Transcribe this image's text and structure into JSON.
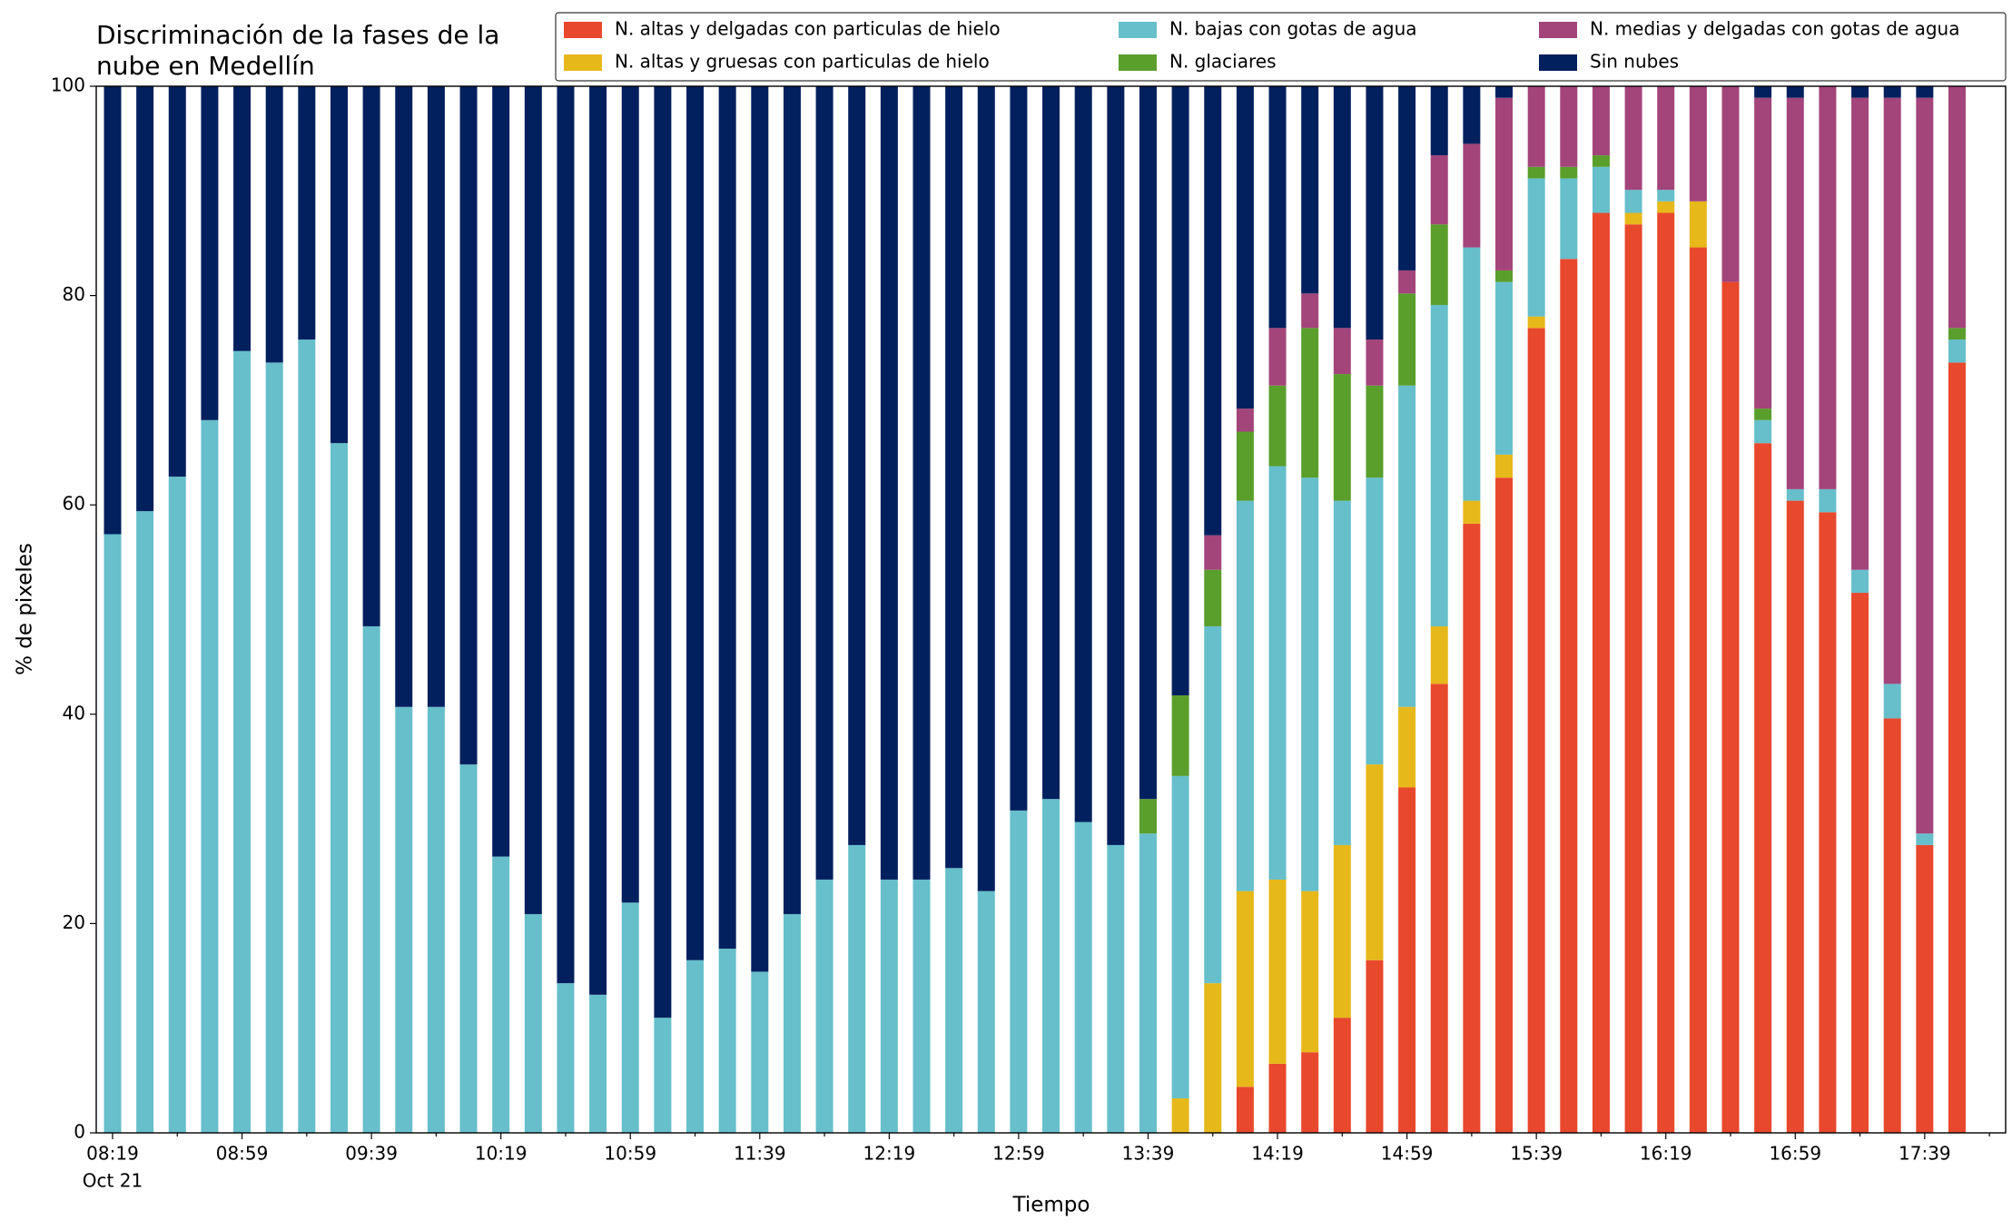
{
  "chart_data": {
    "type": "stacked_bar",
    "title": "Discriminación de la fases de la\nnube en Medellín",
    "x_label": "Tiempo",
    "y_label": "% de pixeles",
    "x_date": "Oct 21",
    "categories": [
      "08:19",
      null,
      null,
      null,
      "08:59",
      null,
      null,
      null,
      "09:39",
      null,
      null,
      null,
      "10:19",
      null,
      null,
      null,
      "10:59",
      null,
      null,
      null,
      "11:39",
      null,
      null,
      null,
      "12:19",
      null,
      null,
      null,
      "12:59",
      null,
      null,
      null,
      "13:39",
      null,
      null,
      null,
      "14:19",
      null,
      null,
      null,
      "14:59",
      null,
      null,
      null,
      "15:39",
      null,
      null,
      null,
      "16:19",
      null,
      null,
      null,
      "16:59",
      null,
      null,
      null,
      "17:39",
      null
    ],
    "ylim": [
      0,
      100
    ],
    "yticks": [
      0,
      20,
      40,
      60,
      80,
      100
    ],
    "legend": "top",
    "series": [
      {
        "name": "N. altas y delgadas con particulas de hielo",
        "color": "#e8482c",
        "values": [
          0,
          0,
          0,
          0,
          0,
          0,
          0,
          0,
          0,
          0,
          0,
          0,
          0,
          0,
          0,
          0,
          0,
          0,
          0,
          0,
          0,
          0,
          0,
          0,
          0,
          0,
          0,
          0,
          0,
          0,
          0,
          0,
          0,
          0,
          0,
          4.4,
          6.6,
          7.7,
          11.0,
          16.5,
          33.0,
          42.9,
          58.2,
          62.6,
          76.9,
          83.5,
          87.9,
          86.8,
          87.9,
          84.6,
          81.3,
          65.9,
          60.4,
          59.3,
          51.6,
          39.6,
          27.5,
          73.6
        ]
      },
      {
        "name": "N. altas y gruesas con particulas de hielo",
        "color": "#e6b81a",
        "values": [
          0,
          0,
          0,
          0,
          0,
          0,
          0,
          0,
          0,
          0,
          0,
          0,
          0,
          0,
          0,
          0,
          0,
          0,
          0,
          0,
          0,
          0,
          0,
          0,
          0,
          0,
          0,
          0,
          0,
          0,
          0,
          0,
          0,
          3.3,
          14.3,
          18.7,
          17.6,
          15.4,
          16.5,
          18.7,
          7.7,
          5.5,
          2.2,
          2.2,
          1.1,
          0,
          0,
          1.1,
          1.1,
          4.4,
          0,
          0,
          0,
          0,
          0,
          0,
          0,
          0
        ]
      },
      {
        "name": "N. bajas con gotas de agua",
        "color": "#66bfcb",
        "values": [
          57.2,
          59.4,
          62.7,
          68.1,
          74.7,
          73.6,
          75.8,
          65.9,
          48.4,
          40.7,
          40.7,
          35.2,
          26.4,
          20.9,
          14.3,
          13.2,
          22.0,
          11.0,
          16.5,
          17.6,
          15.4,
          20.9,
          24.2,
          27.5,
          24.2,
          24.2,
          25.3,
          23.1,
          30.8,
          31.9,
          29.7,
          27.5,
          28.6,
          30.8,
          34.1,
          37.3,
          39.5,
          39.5,
          32.9,
          27.4,
          30.7,
          30.7,
          24.2,
          16.5,
          13.2,
          7.7,
          4.4,
          2.2,
          1.1,
          0,
          0,
          2.2,
          1.1,
          2.2,
          2.2,
          3.3,
          1.1,
          2.2
        ]
      },
      {
        "name": "N. glaciares",
        "color": "#5a9e2c",
        "values": [
          0,
          0,
          0,
          0,
          0,
          0,
          0,
          0,
          0,
          0,
          0,
          0,
          0,
          0,
          0,
          0,
          0,
          0,
          0,
          0,
          0,
          0,
          0,
          0,
          0,
          0,
          0,
          0,
          0,
          0,
          0,
          0,
          3.3,
          7.7,
          5.4,
          6.6,
          7.7,
          14.3,
          12.1,
          8.8,
          8.8,
          7.7,
          0,
          1.1,
          1.1,
          1.1,
          1.1,
          0,
          0,
          0,
          0,
          1.1,
          0,
          0,
          0,
          0,
          0,
          1.1
        ]
      },
      {
        "name": "N. medias y delgadas con gotas de agua",
        "color": "#a3457a",
        "values": [
          0,
          0,
          0,
          0,
          0,
          0,
          0,
          0,
          0,
          0,
          0,
          0,
          0,
          0,
          0,
          0,
          0,
          0,
          0,
          0,
          0,
          0,
          0,
          0,
          0,
          0,
          0,
          0,
          0,
          0,
          0,
          0,
          0,
          0,
          3.3,
          2.2,
          5.5,
          3.3,
          4.4,
          4.4,
          2.2,
          6.6,
          9.9,
          16.5,
          7.7,
          7.7,
          6.6,
          9.9,
          9.9,
          11.0,
          18.7,
          29.7,
          37.4,
          38.5,
          45.1,
          56.0,
          70.3,
          23.1
        ]
      },
      {
        "name": "Sin nubes",
        "color": "#03205e",
        "values": [
          42.8,
          40.6,
          37.3,
          31.9,
          25.3,
          26.4,
          24.2,
          34.1,
          51.6,
          59.3,
          59.3,
          64.8,
          73.6,
          79.1,
          85.7,
          86.8,
          78.0,
          89.0,
          83.5,
          82.4,
          84.6,
          79.1,
          75.8,
          72.5,
          75.8,
          75.8,
          74.7,
          76.9,
          69.2,
          68.1,
          70.3,
          72.5,
          68.1,
          58.2,
          42.9,
          30.8,
          23.1,
          19.8,
          23.1,
          24.2,
          17.6,
          6.6,
          5.5,
          1.1,
          0,
          0,
          0,
          0,
          0,
          0,
          0,
          1.1,
          1.1,
          0,
          1.1,
          1.1,
          1.1,
          0
        ]
      }
    ]
  }
}
